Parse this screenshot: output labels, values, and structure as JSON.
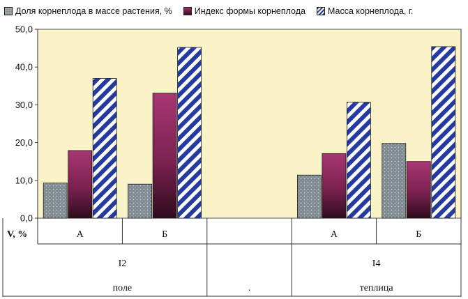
{
  "chart_data": {
    "type": "bar",
    "ylabel": "V, %",
    "ylim": [
      0,
      50
    ],
    "yticks": [
      "0,0",
      "10,0",
      "20,0",
      "30,0",
      "40,0",
      "50,0"
    ],
    "grid": false,
    "legend_position": "top",
    "groups": [
      {
        "label": "A",
        "level2": "I2",
        "level3": "поле",
        "values": [
          9.3,
          17.9,
          37.0
        ]
      },
      {
        "label": "Б",
        "level2": "I2",
        "level3": "поле",
        "values": [
          9.0,
          33.1,
          45.2
        ]
      },
      {
        "label": "",
        "level2": "",
        "level3": ".",
        "values": [
          null,
          null,
          null
        ]
      },
      {
        "label": "А",
        "level2": "I4",
        "level3": "теплица",
        "values": [
          11.4,
          17.1,
          30.7
        ]
      },
      {
        "label": "Б",
        "level2": "I4",
        "level3": "теплица",
        "values": [
          19.8,
          15.0,
          45.4
        ]
      }
    ],
    "series": [
      {
        "name": "Доля корнеплода в массе растения, %",
        "color": "#8a949a",
        "pattern": "dots"
      },
      {
        "name": "Индекс формы корнеплода",
        "color": "#8e2a5e",
        "pattern": "gradient"
      },
      {
        "name": "Масса корнеплода, г.",
        "color": "#243a9e",
        "pattern": "diagonal-stripes"
      }
    ],
    "plot_background": "#fbf3c8"
  }
}
